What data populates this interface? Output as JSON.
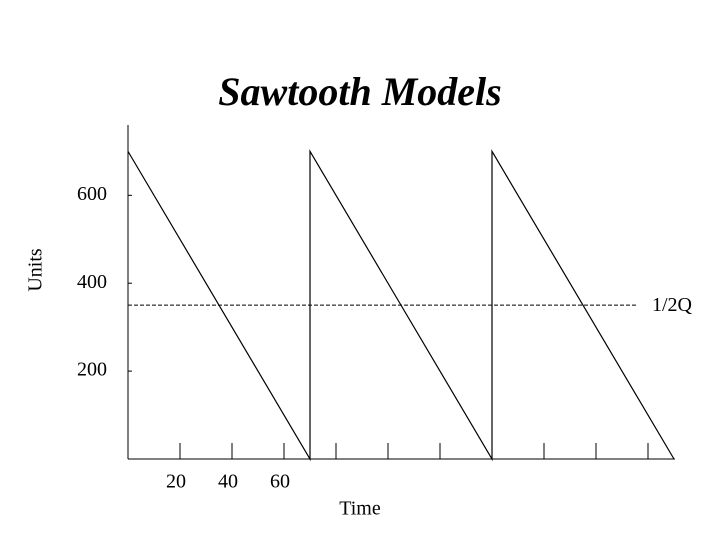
{
  "chart_data": {
    "type": "line",
    "title": "Sawtooth Models",
    "x_label": "Time",
    "y_label": "Units",
    "x": [
      0,
      70,
      70,
      140,
      140,
      210
    ],
    "values": [
      700,
      0,
      700,
      0,
      700,
      0
    ],
    "color": "#000000",
    "xlim": [
      0,
      210
    ],
    "ylim": [
      0,
      760
    ],
    "xticks": [
      20,
      40,
      60,
      {
        "value": 80,
        "label": null
      },
      {
        "value": 100,
        "label": null
      },
      {
        "value": 120,
        "label": null
      },
      {
        "value": 140,
        "label": null
      },
      {
        "value": 160,
        "label": null
      },
      {
        "value": 180,
        "label": null
      },
      {
        "value": 200,
        "label": null
      }
    ],
    "yticks": [
      200,
      400,
      600
    ],
    "reference_line": {
      "value": 350,
      "label": "1/2Q"
    }
  }
}
